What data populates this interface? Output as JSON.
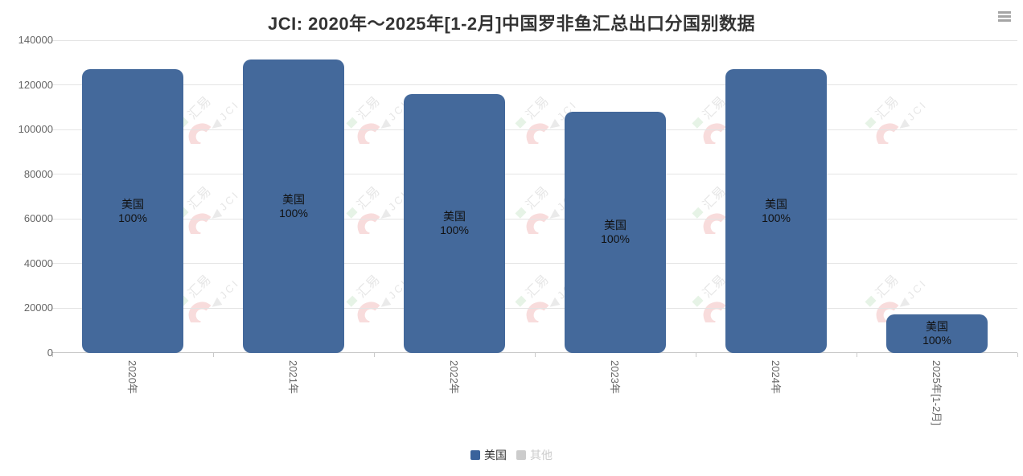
{
  "header": {
    "menu_icon": "hamburger-icon"
  },
  "watermark": {
    "text_cn": "汇易",
    "text_en": "JCI"
  },
  "legend": {
    "items": [
      {
        "label": "美国",
        "color": "#3A629B",
        "enabled": true
      },
      {
        "label": "其他",
        "color": "#CCCCCC",
        "enabled": false
      }
    ]
  },
  "chart_data": {
    "type": "bar",
    "title": "JCI: 2020年～2025年[1-2月]中国罗非鱼汇总出口分国别数据",
    "categories": [
      "2020年",
      "2021年",
      "2022年",
      "2023年",
      "2024年",
      "2025年[1-2月]"
    ],
    "series": [
      {
        "name": "美国",
        "color": "#44699B",
        "values": [
          127000,
          131500,
          116000,
          108000,
          127000,
          17400
        ],
        "label_name": "美国",
        "label_pct": "100%",
        "visible": true
      },
      {
        "name": "其他",
        "color": "#CCCCCC",
        "visible": false
      }
    ],
    "xlabel": "",
    "ylabel": "",
    "ylim": [
      0,
      140000
    ],
    "yticks": [
      0,
      20000,
      40000,
      60000,
      80000,
      100000,
      120000,
      140000
    ],
    "grid": true,
    "legend_position": "bottom",
    "x_label_rotation_deg": 90
  },
  "colors": {
    "bar": "#44699B",
    "legend_active": "#3A629B",
    "disabled": "#CCCCCC",
    "grid": "#E4E4E4",
    "axis": "#C9C9C9",
    "axis_label": "#666666",
    "title": "#333333",
    "data_label": "#111111",
    "burger": "#A5A5A5",
    "watermark_red": "#F3BABA",
    "watermark_green": "#CFE8CF",
    "watermark_grey": "#D6D6D6",
    "watermark_text": "#CFCFCF"
  }
}
